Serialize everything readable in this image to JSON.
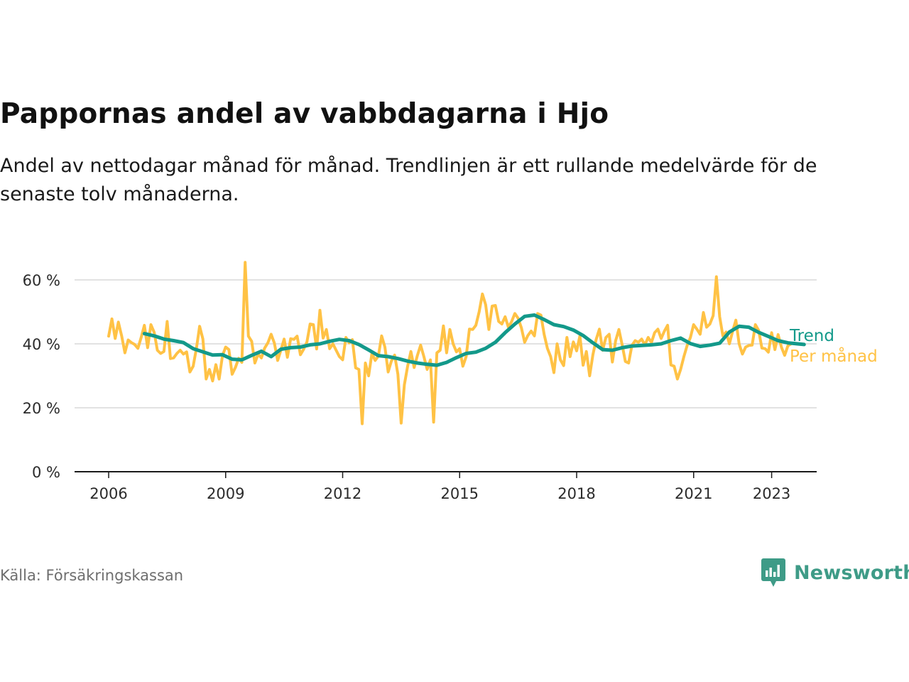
{
  "title": "Pappornas andel av vabbdagarna i Hjo",
  "subtitle": "Andel av nettodagar månad för månad. Trendlinjen är ett rullande medelvärde för de senaste tolv månaderna.",
  "source": "Källa: Försäkringskassan",
  "logo": {
    "text": "Newsworthy",
    "icon": "newsworthy-chart-icon",
    "color": "#3e9b87"
  },
  "chart_data": {
    "type": "line",
    "x_axis": {
      "unit": "year",
      "ticks": [
        2006,
        2009,
        2012,
        2015,
        2018,
        2021,
        2023
      ],
      "tick_labels": [
        "2006",
        "2009",
        "2012",
        "2015",
        "2018",
        "2021",
        "2023"
      ]
    },
    "y_axis": {
      "range": [
        0,
        70
      ],
      "ticks": [
        0,
        20,
        40,
        60
      ],
      "tick_labels": [
        "0 %",
        "20 %",
        "40 %",
        "60 %"
      ]
    },
    "grid": "horizontal",
    "legend": "inline-right",
    "series": [
      {
        "name": "Trend",
        "color": "#13998a",
        "points": [
          [
            "2006-12",
            43.2
          ],
          [
            "2007-03",
            42.5
          ],
          [
            "2007-06",
            41.5
          ],
          [
            "2007-09",
            41.0
          ],
          [
            "2007-12",
            40.4
          ],
          [
            "2008-03",
            38.5
          ],
          [
            "2008-06",
            37.5
          ],
          [
            "2008-09",
            36.5
          ],
          [
            "2008-12",
            36.6
          ],
          [
            "2009-03",
            35.2
          ],
          [
            "2009-06",
            35.0
          ],
          [
            "2009-09",
            36.4
          ],
          [
            "2009-12",
            37.7
          ],
          [
            "2010-03",
            36.0
          ],
          [
            "2010-06",
            38.3
          ],
          [
            "2010-09",
            38.8
          ],
          [
            "2010-12",
            39.0
          ],
          [
            "2011-03",
            39.7
          ],
          [
            "2011-06",
            40.0
          ],
          [
            "2011-09",
            40.8
          ],
          [
            "2011-12",
            41.4
          ],
          [
            "2012-03",
            41.0
          ],
          [
            "2012-06",
            39.8
          ],
          [
            "2012-09",
            38.1
          ],
          [
            "2012-12",
            36.3
          ],
          [
            "2013-03",
            36.0
          ],
          [
            "2013-06",
            35.4
          ],
          [
            "2013-09",
            34.6
          ],
          [
            "2013-12",
            34.0
          ],
          [
            "2014-03",
            33.6
          ],
          [
            "2014-06",
            33.3
          ],
          [
            "2014-09",
            34.2
          ],
          [
            "2014-12",
            35.7
          ],
          [
            "2015-03",
            37.0
          ],
          [
            "2015-06",
            37.4
          ],
          [
            "2015-09",
            38.6
          ],
          [
            "2015-12",
            40.5
          ],
          [
            "2016-03",
            43.5
          ],
          [
            "2016-06",
            46.2
          ],
          [
            "2016-09",
            48.6
          ],
          [
            "2016-12",
            49.0
          ],
          [
            "2017-03",
            47.6
          ],
          [
            "2017-06",
            46.0
          ],
          [
            "2017-09",
            45.4
          ],
          [
            "2017-12",
            44.3
          ],
          [
            "2018-03",
            42.6
          ],
          [
            "2018-06",
            40.3
          ],
          [
            "2018-09",
            38.2
          ],
          [
            "2018-12",
            38.0
          ],
          [
            "2019-03",
            38.8
          ],
          [
            "2019-06",
            39.3
          ],
          [
            "2019-09",
            39.5
          ],
          [
            "2019-12",
            39.7
          ],
          [
            "2020-03",
            40.0
          ],
          [
            "2020-06",
            41.0
          ],
          [
            "2020-09",
            41.8
          ],
          [
            "2020-12",
            40.1
          ],
          [
            "2021-03",
            39.2
          ],
          [
            "2021-06",
            39.6
          ],
          [
            "2021-09",
            40.2
          ],
          [
            "2021-12",
            43.7
          ],
          [
            "2022-03",
            45.5
          ],
          [
            "2022-06",
            45.2
          ],
          [
            "2022-09",
            43.6
          ],
          [
            "2022-12",
            42.3
          ],
          [
            "2023-03",
            41.0
          ],
          [
            "2023-06",
            40.3
          ],
          [
            "2023-09",
            40.0
          ],
          [
            "2023-11",
            39.8
          ]
        ]
      },
      {
        "name": "Per månad",
        "color": "#ffc245",
        "points": [
          [
            "2006-01",
            42.4
          ],
          [
            "2006-02",
            47.8
          ],
          [
            "2006-03",
            41.7
          ],
          [
            "2006-04",
            46.8
          ],
          [
            "2006-05",
            42.5
          ],
          [
            "2006-06",
            37.2
          ],
          [
            "2006-07",
            41.2
          ],
          [
            "2006-08",
            40.4
          ],
          [
            "2006-09",
            39.8
          ],
          [
            "2006-10",
            38.6
          ],
          [
            "2006-11",
            42.0
          ],
          [
            "2006-12",
            45.8
          ],
          [
            "2007-01",
            38.8
          ],
          [
            "2007-02",
            46.0
          ],
          [
            "2007-03",
            43.6
          ],
          [
            "2007-04",
            38.0
          ],
          [
            "2007-05",
            37.0
          ],
          [
            "2007-06",
            37.6
          ],
          [
            "2007-07",
            47.0
          ],
          [
            "2007-08",
            35.4
          ],
          [
            "2007-09",
            35.6
          ],
          [
            "2007-10",
            37.0
          ],
          [
            "2007-11",
            38.0
          ],
          [
            "2007-12",
            36.8
          ],
          [
            "2008-01",
            37.5
          ],
          [
            "2008-02",
            31.2
          ],
          [
            "2008-03",
            33.0
          ],
          [
            "2008-04",
            38.6
          ],
          [
            "2008-05",
            45.5
          ],
          [
            "2008-06",
            41.5
          ],
          [
            "2008-07",
            29.0
          ],
          [
            "2008-08",
            32.0
          ],
          [
            "2008-09",
            28.4
          ],
          [
            "2008-10",
            33.5
          ],
          [
            "2008-11",
            29.0
          ],
          [
            "2008-12",
            36.2
          ],
          [
            "2009-01",
            39.0
          ],
          [
            "2009-02",
            38.2
          ],
          [
            "2009-03",
            30.5
          ],
          [
            "2009-04",
            32.6
          ],
          [
            "2009-05",
            35.5
          ],
          [
            "2009-06",
            34.2
          ],
          [
            "2009-07",
            65.5
          ],
          [
            "2009-08",
            42.4
          ],
          [
            "2009-09",
            40.8
          ],
          [
            "2009-10",
            34.0
          ],
          [
            "2009-11",
            36.8
          ],
          [
            "2009-12",
            35.6
          ],
          [
            "2010-01",
            38.7
          ],
          [
            "2010-02",
            40.3
          ],
          [
            "2010-03",
            43.0
          ],
          [
            "2010-04",
            40.2
          ],
          [
            "2010-05",
            34.8
          ],
          [
            "2010-06",
            38.0
          ],
          [
            "2010-07",
            41.5
          ],
          [
            "2010-08",
            35.8
          ],
          [
            "2010-09",
            41.6
          ],
          [
            "2010-10",
            41.4
          ],
          [
            "2010-11",
            42.4
          ],
          [
            "2010-12",
            36.6
          ],
          [
            "2011-01",
            38.3
          ],
          [
            "2011-02",
            40.6
          ],
          [
            "2011-03",
            46.2
          ],
          [
            "2011-04",
            46.0
          ],
          [
            "2011-05",
            38.4
          ],
          [
            "2011-06",
            50.5
          ],
          [
            "2011-07",
            41.8
          ],
          [
            "2011-08",
            44.5
          ],
          [
            "2011-09",
            38.5
          ],
          [
            "2011-10",
            40.0
          ],
          [
            "2011-11",
            38.0
          ],
          [
            "2011-12",
            36.0
          ],
          [
            "2012-01",
            35.0
          ],
          [
            "2012-02",
            42.0
          ],
          [
            "2012-03",
            40.3
          ],
          [
            "2012-04",
            41.3
          ],
          [
            "2012-05",
            32.5
          ],
          [
            "2012-06",
            32.0
          ],
          [
            "2012-07",
            15.0
          ],
          [
            "2012-08",
            34.0
          ],
          [
            "2012-09",
            30.0
          ],
          [
            "2012-10",
            37.0
          ],
          [
            "2012-11",
            34.8
          ],
          [
            "2012-12",
            36.2
          ],
          [
            "2013-01",
            42.5
          ],
          [
            "2013-02",
            39.0
          ],
          [
            "2013-03",
            31.2
          ],
          [
            "2013-04",
            34.6
          ],
          [
            "2013-05",
            36.5
          ],
          [
            "2013-06",
            30.5
          ],
          [
            "2013-07",
            15.2
          ],
          [
            "2013-08",
            27.2
          ],
          [
            "2013-09",
            33.0
          ],
          [
            "2013-10",
            37.6
          ],
          [
            "2013-11",
            32.6
          ],
          [
            "2013-12",
            36.4
          ],
          [
            "2014-01",
            39.6
          ],
          [
            "2014-02",
            36.0
          ],
          [
            "2014-03",
            32.0
          ],
          [
            "2014-04",
            35.0
          ],
          [
            "2014-05",
            15.5
          ],
          [
            "2014-06",
            37.2
          ],
          [
            "2014-07",
            38.0
          ],
          [
            "2014-08",
            45.6
          ],
          [
            "2014-09",
            37.2
          ],
          [
            "2014-10",
            44.5
          ],
          [
            "2014-11",
            40.0
          ],
          [
            "2014-12",
            37.5
          ],
          [
            "2015-01",
            38.5
          ],
          [
            "2015-02",
            33.0
          ],
          [
            "2015-03",
            36.0
          ],
          [
            "2015-04",
            44.6
          ],
          [
            "2015-05",
            44.5
          ],
          [
            "2015-06",
            45.8
          ],
          [
            "2015-07",
            50.0
          ],
          [
            "2015-08",
            55.6
          ],
          [
            "2015-09",
            52.2
          ],
          [
            "2015-10",
            44.5
          ],
          [
            "2015-11",
            51.8
          ],
          [
            "2015-12",
            52.0
          ],
          [
            "2016-01",
            47.0
          ],
          [
            "2016-02",
            46.2
          ],
          [
            "2016-03",
            48.5
          ],
          [
            "2016-04",
            45.2
          ],
          [
            "2016-05",
            47.0
          ],
          [
            "2016-06",
            49.5
          ],
          [
            "2016-07",
            48.0
          ],
          [
            "2016-08",
            45.0
          ],
          [
            "2016-09",
            40.5
          ],
          [
            "2016-10",
            42.6
          ],
          [
            "2016-11",
            44.0
          ],
          [
            "2016-12",
            42.5
          ],
          [
            "2017-01",
            49.5
          ],
          [
            "2017-02",
            49.0
          ],
          [
            "2017-03",
            43.0
          ],
          [
            "2017-04",
            38.6
          ],
          [
            "2017-05",
            36.0
          ],
          [
            "2017-06",
            31.0
          ],
          [
            "2017-07",
            40.0
          ],
          [
            "2017-08",
            35.0
          ],
          [
            "2017-09",
            33.2
          ],
          [
            "2017-10",
            42.0
          ],
          [
            "2017-11",
            36.0
          ],
          [
            "2017-12",
            40.6
          ],
          [
            "2018-01",
            37.8
          ],
          [
            "2018-02",
            42.5
          ],
          [
            "2018-03",
            33.3
          ],
          [
            "2018-04",
            37.6
          ],
          [
            "2018-05",
            30.0
          ],
          [
            "2018-06",
            36.6
          ],
          [
            "2018-07",
            41.4
          ],
          [
            "2018-08",
            44.6
          ],
          [
            "2018-09",
            38.0
          ],
          [
            "2018-10",
            42.0
          ],
          [
            "2018-11",
            43.0
          ],
          [
            "2018-12",
            34.3
          ],
          [
            "2019-01",
            41.0
          ],
          [
            "2019-02",
            44.5
          ],
          [
            "2019-03",
            39.7
          ],
          [
            "2019-04",
            34.5
          ],
          [
            "2019-05",
            34.0
          ],
          [
            "2019-06",
            39.5
          ],
          [
            "2019-07",
            41.0
          ],
          [
            "2019-08",
            40.5
          ],
          [
            "2019-09",
            41.5
          ],
          [
            "2019-10",
            39.7
          ],
          [
            "2019-11",
            42.0
          ],
          [
            "2019-12",
            40.4
          ],
          [
            "2020-01",
            43.5
          ],
          [
            "2020-02",
            44.6
          ],
          [
            "2020-03",
            41.7
          ],
          [
            "2020-04",
            44.0
          ],
          [
            "2020-05",
            45.8
          ],
          [
            "2020-06",
            33.4
          ],
          [
            "2020-07",
            33.0
          ],
          [
            "2020-08",
            29.0
          ],
          [
            "2020-09",
            32.0
          ],
          [
            "2020-10",
            36.0
          ],
          [
            "2020-11",
            39.5
          ],
          [
            "2020-12",
            42.0
          ],
          [
            "2021-01",
            46.0
          ],
          [
            "2021-02",
            44.6
          ],
          [
            "2021-03",
            43.0
          ],
          [
            "2021-04",
            49.8
          ],
          [
            "2021-05",
            45.2
          ],
          [
            "2021-06",
            46.2
          ],
          [
            "2021-07",
            48.8
          ],
          [
            "2021-08",
            61.0
          ],
          [
            "2021-09",
            48.5
          ],
          [
            "2021-10",
            42.5
          ],
          [
            "2021-11",
            43.7
          ],
          [
            "2021-12",
            40.0
          ],
          [
            "2022-01",
            44.0
          ],
          [
            "2022-02",
            47.4
          ],
          [
            "2022-03",
            40.0
          ],
          [
            "2022-04",
            36.8
          ],
          [
            "2022-05",
            39.0
          ],
          [
            "2022-06",
            39.5
          ],
          [
            "2022-07",
            39.6
          ],
          [
            "2022-08",
            46.0
          ],
          [
            "2022-09",
            44.2
          ],
          [
            "2022-10",
            38.7
          ],
          [
            "2022-11",
            38.5
          ],
          [
            "2022-12",
            37.4
          ],
          [
            "2023-01",
            43.5
          ],
          [
            "2023-02",
            38.2
          ],
          [
            "2023-03",
            42.9
          ],
          [
            "2023-04",
            39.0
          ],
          [
            "2023-05",
            36.4
          ],
          [
            "2023-06",
            39.4
          ],
          [
            "2023-07",
            40.0
          ]
        ]
      }
    ]
  }
}
